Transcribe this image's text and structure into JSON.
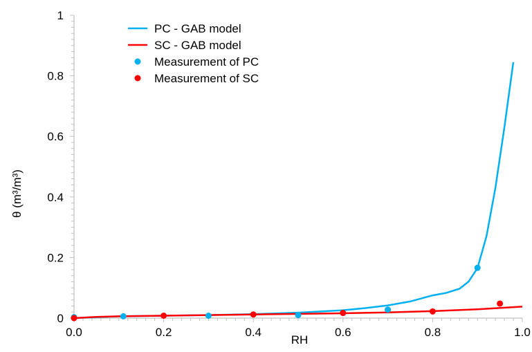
{
  "chart_data": {
    "type": "line",
    "title": "",
    "xlabel": "RH",
    "ylabel": "θ (m³/m³)",
    "xlim": [
      0.0,
      1.0
    ],
    "ylim": [
      0,
      1
    ],
    "x_ticks": [
      "0.0",
      "0.2",
      "0.4",
      "0.6",
      "0.8",
      "1.0"
    ],
    "x_tick_values": [
      0.0,
      0.2,
      0.4,
      0.6,
      0.8,
      1.0
    ],
    "y_ticks": [
      "0",
      "0.2",
      "0.4",
      "0.6",
      "0.8",
      "1"
    ],
    "y_tick_values": [
      0,
      0.2,
      0.4,
      0.6,
      0.8,
      1
    ],
    "grid": false,
    "legend_position": "top-left",
    "series": [
      {
        "name": "PC - GAB model",
        "kind": "line",
        "color": "#00B0F0",
        "x": [
          0.0,
          0.05,
          0.1,
          0.2,
          0.3,
          0.4,
          0.5,
          0.6,
          0.65,
          0.7,
          0.75,
          0.8,
          0.83,
          0.86,
          0.88,
          0.9,
          0.92,
          0.94,
          0.96,
          0.98
        ],
        "y": [
          0.0,
          0.003,
          0.006,
          0.008,
          0.01,
          0.013,
          0.018,
          0.026,
          0.033,
          0.042,
          0.055,
          0.075,
          0.083,
          0.097,
          0.12,
          0.165,
          0.27,
          0.43,
          0.63,
          0.845
        ]
      },
      {
        "name": "SC - GAB model",
        "kind": "line",
        "color": "#FF0000",
        "x": [
          0.0,
          0.05,
          0.1,
          0.2,
          0.3,
          0.4,
          0.5,
          0.6,
          0.7,
          0.8,
          0.9,
          1.0
        ],
        "y": [
          0.0,
          0.004,
          0.006,
          0.008,
          0.01,
          0.012,
          0.014,
          0.016,
          0.019,
          0.023,
          0.029,
          0.038
        ]
      },
      {
        "name": "Measurement of PC",
        "kind": "scatter",
        "color": "#00B0F0",
        "x": [
          0.0,
          0.11,
          0.3,
          0.5,
          0.7,
          0.9
        ],
        "y": [
          0.003,
          0.006,
          0.008,
          0.01,
          0.028,
          0.166
        ]
      },
      {
        "name": "Measurement of SC",
        "kind": "scatter",
        "color": "#FF0000",
        "x": [
          0.0,
          0.2,
          0.4,
          0.6,
          0.8,
          0.95
        ],
        "y": [
          0.0,
          0.008,
          0.012,
          0.017,
          0.022,
          0.048
        ]
      }
    ]
  }
}
